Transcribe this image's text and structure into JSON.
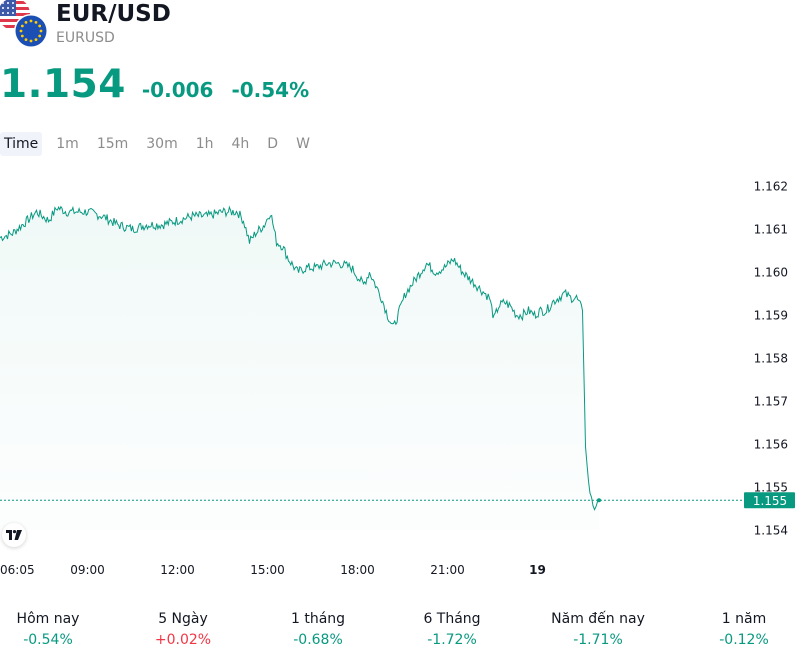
{
  "symbol": {
    "name": "EUR/USD",
    "code": "EURUSD"
  },
  "quote": {
    "price": "1.154",
    "change": "-0.006",
    "change_percent": "-0.54%"
  },
  "timeframes": [
    "Time",
    "1m",
    "15m",
    "30m",
    "1h",
    "4h",
    "D",
    "W"
  ],
  "selected_timeframe": "Time",
  "chart_data": {
    "type": "area",
    "ylim": [
      1.1535,
      1.1625
    ],
    "x_range_hours": [
      6.083,
      22.5
    ],
    "y_ticks": [
      "1.162",
      "1.161",
      "1.160",
      "1.159",
      "1.158",
      "1.157",
      "1.156",
      "1.155",
      "1.154"
    ],
    "y_tick_values": [
      1.162,
      1.161,
      1.16,
      1.159,
      1.158,
      1.157,
      1.156,
      1.155,
      1.154
    ],
    "x_ticks": [
      "06:05",
      "09:00",
      "12:00",
      "15:00",
      "18:00",
      "21:00",
      "19"
    ],
    "x_tick_hours": [
      6.083,
      9,
      12,
      15,
      18,
      21,
      24
    ],
    "current_price_label": "1.155",
    "current_price": 1.15469,
    "series": [
      {
        "x": [
          6.083,
          6.5,
          7.0,
          7.3,
          7.7,
          8.0,
          8.3,
          8.6,
          9.0,
          9.5,
          10.0,
          10.5,
          11.0,
          11.5,
          12.0,
          12.5,
          13.0,
          13.5,
          14.0,
          14.2,
          14.4,
          14.6,
          14.9,
          15.1,
          15.3,
          15.5,
          15.7,
          16.0,
          16.3,
          16.6,
          17.0,
          17.4,
          17.8,
          18.2,
          18.4,
          18.6,
          18.8,
          19.0,
          19.2,
          19.4,
          19.6,
          19.8,
          20.0,
          20.3,
          20.6,
          20.9,
          21.2,
          21.5,
          21.8,
          22.1,
          22.4,
          22.55,
          22.7,
          22.9,
          23.1,
          23.3,
          23.5,
          23.7,
          23.9,
          24.1,
          24.3,
          24.5,
          24.7,
          24.9,
          25.1,
          25.3,
          25.5,
          25.6,
          25.65,
          25.7,
          25.75,
          25.8,
          25.85,
          25.9,
          25.95,
          26.0,
          26.05
        ],
        "values": [
          1.1608,
          1.1609,
          1.1612,
          1.1614,
          1.1612,
          1.1615,
          1.1614,
          1.1614,
          1.1614,
          1.1613,
          1.1611,
          1.161,
          1.1611,
          1.1611,
          1.1612,
          1.1613,
          1.1613,
          1.1614,
          1.1614,
          1.1612,
          1.1607,
          1.1609,
          1.1611,
          1.1614,
          1.1607,
          1.1606,
          1.1603,
          1.16,
          1.1601,
          1.1601,
          1.1602,
          1.1602,
          1.1601,
          1.1597,
          1.16,
          1.1597,
          1.1594,
          1.159,
          1.1587,
          1.1591,
          1.1595,
          1.1597,
          1.1599,
          1.1602,
          1.16,
          1.1601,
          1.1603,
          1.16,
          1.1598,
          1.1596,
          1.1594,
          1.1589,
          1.1592,
          1.1593,
          1.1592,
          1.159,
          1.159,
          1.1591,
          1.159,
          1.1591,
          1.1591,
          1.1593,
          1.1594,
          1.1595,
          1.1594,
          1.1594,
          1.1591,
          1.156,
          1.1556,
          1.1551,
          1.1549,
          1.1547,
          1.1546,
          1.1545,
          1.1546,
          1.1547,
          1.15469
        ]
      }
    ],
    "grid": false,
    "line_color": "#089981"
  },
  "performance": [
    {
      "label": "Hôm nay",
      "value": "-0.54%",
      "positive": false
    },
    {
      "label": "5 Ngày",
      "value": "+0.02%",
      "positive": true
    },
    {
      "label": "1 tháng",
      "value": "-0.68%",
      "positive": false
    },
    {
      "label": "6 Tháng",
      "value": "-1.72%",
      "positive": false
    },
    {
      "label": "Năm đến nay",
      "value": "-1.71%",
      "positive": false
    },
    {
      "label": "1 năm",
      "value": "-0.12%",
      "positive": false
    }
  ],
  "icons": {
    "flag_us": "us-flag-icon",
    "flag_eu": "eu-flag-icon",
    "logo": "tradingview-logo-icon"
  },
  "colors": {
    "up": "#f23645",
    "down": "#089981",
    "accent": "#089981"
  }
}
